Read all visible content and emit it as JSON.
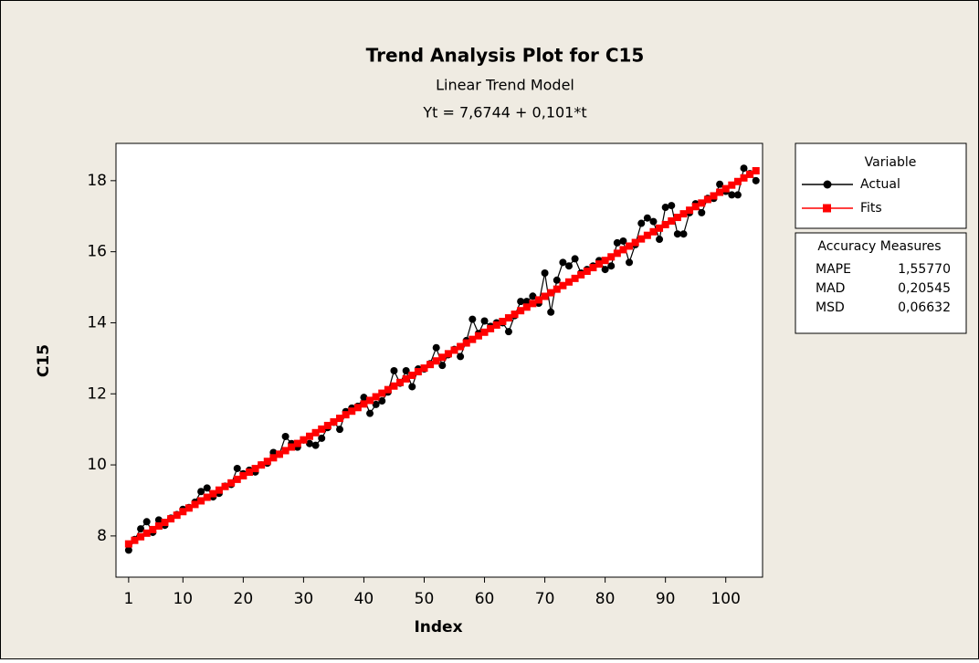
{
  "chart_data": {
    "type": "line",
    "title": "Trend Analysis Plot for C15",
    "subtitle": "Linear Trend Model",
    "equation": "Yt = 7,6744 + 0,101*t",
    "x_label": "Index",
    "y_label": "C15",
    "x": [
      1,
      2,
      3,
      4,
      5,
      6,
      7,
      8,
      9,
      10,
      11,
      12,
      13,
      14,
      15,
      16,
      17,
      18,
      19,
      20,
      21,
      22,
      23,
      24,
      25,
      26,
      27,
      28,
      29,
      30,
      31,
      32,
      33,
      34,
      35,
      36,
      37,
      38,
      39,
      40,
      41,
      42,
      43,
      44,
      45,
      46,
      47,
      48,
      49,
      50,
      51,
      52,
      53,
      54,
      55,
      56,
      57,
      58,
      59,
      60,
      61,
      62,
      63,
      64,
      65,
      66,
      67,
      68,
      69,
      70,
      71,
      72,
      73,
      74,
      75,
      76,
      77,
      78,
      79,
      80,
      81,
      82,
      83,
      84,
      85,
      86,
      87,
      88,
      89,
      90,
      91,
      92,
      93,
      94,
      95,
      96,
      97,
      98,
      99,
      100,
      101,
      102,
      103,
      104,
      105
    ],
    "series": [
      {
        "name": "Actual",
        "color": "#000000",
        "marker": "circle",
        "values": [
          7.6,
          7.9,
          8.2,
          8.4,
          8.1,
          8.45,
          8.3,
          8.5,
          8.6,
          8.75,
          8.8,
          8.95,
          9.25,
          9.35,
          9.1,
          9.2,
          9.4,
          9.45,
          9.9,
          9.75,
          9.85,
          9.8,
          10.0,
          10.05,
          10.35,
          10.3,
          10.8,
          10.6,
          10.5,
          10.7,
          10.6,
          10.55,
          10.75,
          11.05,
          11.2,
          11.0,
          11.5,
          11.6,
          11.65,
          11.9,
          11.45,
          11.7,
          11.8,
          12.05,
          12.65,
          12.3,
          12.65,
          12.2,
          12.7,
          12.7,
          12.85,
          13.3,
          12.8,
          13.1,
          13.25,
          13.05,
          13.5,
          14.1,
          13.7,
          14.05,
          13.9,
          14.0,
          14.0,
          13.75,
          14.2,
          14.6,
          14.6,
          14.75,
          14.55,
          15.4,
          14.3,
          15.2,
          15.7,
          15.6,
          15.8,
          15.4,
          15.5,
          15.6,
          15.75,
          15.5,
          15.6,
          16.25,
          16.3,
          15.7,
          16.2,
          16.8,
          16.95,
          16.85,
          16.35,
          17.25,
          17.3,
          16.5,
          16.5,
          17.1,
          17.35,
          17.1,
          17.5,
          17.5,
          17.9,
          17.7,
          17.6,
          17.6,
          18.35,
          18.2,
          18.0
        ]
      },
      {
        "name": "Fits",
        "color": "#ff0000",
        "marker": "square",
        "values": [
          7.7754,
          7.8764,
          7.9774,
          8.0784,
          8.1794,
          8.2804,
          8.3814,
          8.4824,
          8.5834,
          8.6844,
          8.7854,
          8.8864,
          8.9874,
          9.0884,
          9.1894,
          9.2904,
          9.3914,
          9.4924,
          9.5934,
          9.6944,
          9.7954,
          9.8964,
          9.9974,
          10.0984,
          10.1994,
          10.3004,
          10.4014,
          10.5024,
          10.6034,
          10.7044,
          10.8054,
          10.9064,
          11.0074,
          11.1084,
          11.2094,
          11.3104,
          11.4114,
          11.5124,
          11.6134,
          11.7144,
          11.8154,
          11.9164,
          12.0174,
          12.1184,
          12.2194,
          12.3204,
          12.4214,
          12.5224,
          12.6234,
          12.7244,
          12.8254,
          12.9264,
          13.0274,
          13.1284,
          13.2294,
          13.3304,
          13.4314,
          13.5324,
          13.6334,
          13.7344,
          13.8354,
          13.9364,
          14.0374,
          14.1384,
          14.2394,
          14.3404,
          14.4414,
          14.5424,
          14.6434,
          14.7444,
          14.8454,
          14.9464,
          15.0474,
          15.1484,
          15.2494,
          15.3504,
          15.4514,
          15.5524,
          15.6534,
          15.7544,
          15.8554,
          15.9564,
          16.0574,
          16.1584,
          16.2594,
          16.3604,
          16.4614,
          16.5624,
          16.6634,
          16.7644,
          16.8654,
          16.9664,
          17.0674,
          17.1684,
          17.2694,
          17.3704,
          17.4714,
          17.5724,
          17.6734,
          17.7744,
          17.8754,
          17.9764,
          18.0774,
          18.1784,
          18.2794
        ]
      }
    ],
    "xlim": [
      -1.1,
      106.1
    ],
    "ylim": [
      6.84,
      19.05
    ],
    "xticks": [
      1,
      10,
      20,
      30,
      40,
      50,
      60,
      70,
      80,
      90,
      100
    ],
    "yticks": [
      8,
      10,
      12,
      14,
      16,
      18
    ],
    "legend_title": "Variable",
    "accuracy": {
      "title": "Accuracy Measures",
      "rows": [
        [
          "MAPE",
          "1,55770"
        ],
        [
          "MAD",
          "0,20545"
        ],
        [
          "MSD",
          "0,06632"
        ]
      ]
    }
  }
}
